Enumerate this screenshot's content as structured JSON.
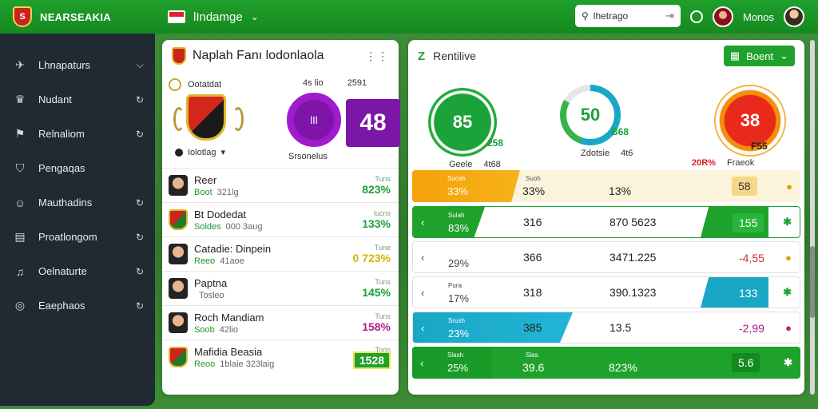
{
  "app": {
    "brand": "NEARSEAKIA",
    "page_title": "lIndamge"
  },
  "colors": {
    "primary": "#1fa02c",
    "sidebar": "#1f2a33",
    "purple": "#7a17a6",
    "orange": "#f5a10a",
    "teal": "#1aa7c6",
    "red": "#e8291c"
  },
  "search": {
    "value": "lhetrago"
  },
  "user": {
    "name": "Monos"
  },
  "sidebar": {
    "items": [
      {
        "label": "Lhnapaturs",
        "icon": "rocket-icon",
        "right": "chevron-down-icon"
      },
      {
        "label": "Nudant",
        "icon": "trophy-icon",
        "right": "refresh-icon"
      },
      {
        "label": "Relnaliom",
        "icon": "flag-icon",
        "right": "refresh-icon"
      },
      {
        "label": "Pengaqas",
        "icon": "shield-icon",
        "right": ""
      },
      {
        "label": "Mauthadins",
        "icon": "users-icon",
        "right": "refresh-icon"
      },
      {
        "label": "Proatlongom",
        "icon": "document-icon",
        "right": "refresh-icon"
      },
      {
        "label": "Oelnaturte",
        "icon": "bell-icon",
        "right": "refresh-icon"
      },
      {
        "label": "Eaephaos",
        "icon": "circle-icon",
        "right": "refresh-icon"
      }
    ]
  },
  "left": {
    "title": "Naplah Fanı lodonlaola",
    "club_label": "Ootatdat",
    "club_sub": "Iolotlag",
    "score_a": "4s lio",
    "score_b": "2591",
    "ring_text": "lIl",
    "box_value": "48",
    "caption": "Srsonelus",
    "players": [
      {
        "name": "Reer",
        "tag": "Boot",
        "meta": "321lg",
        "small": "Tuns",
        "pct": "823%",
        "style": "green",
        "avatar": "person"
      },
      {
        "name": "Bt Dodedat",
        "tag": "Soldes",
        "meta": "000 3aug",
        "small": "lucns",
        "pct": "133%",
        "style": "green",
        "avatar": "crest"
      },
      {
        "name": "Catadie: Dinpein",
        "tag": "Reeo",
        "meta": "41aoe",
        "small": "Tune",
        "pct": "0 723%",
        "style": "yellow",
        "avatar": "person"
      },
      {
        "name": "Paptna",
        "tag": "",
        "meta": "Tosleo",
        "small": "Tuns",
        "pct": "145%",
        "style": "green",
        "avatar": "person"
      },
      {
        "name": "Roch Mandiam",
        "tag": "Soob",
        "meta": "42lio",
        "small": "Tuns",
        "pct": "158%",
        "style": "purple",
        "avatar": "person"
      },
      {
        "name": "Mafidia Beasia",
        "tag": "Reoo",
        "meta": "1blaie 323laig",
        "small": "Toon",
        "pct": "1528",
        "style": "box",
        "avatar": "crest"
      }
    ]
  },
  "right": {
    "title": "Rentilive",
    "button": "Boent",
    "gauges": [
      {
        "value": "85",
        "side": "258",
        "cap_left": "Geele",
        "cap_right": "4t68",
        "color": "#1ba33a"
      },
      {
        "value": "50",
        "side": "B68",
        "cap_left": "Zdotsie",
        "cap_right": "4t6",
        "color": "#1aa7c6"
      },
      {
        "value": "38",
        "side": "F55",
        "cap_left": "20R%",
        "cap_right": "Fraeok",
        "color": "#e8291c"
      }
    ],
    "rows": [
      {
        "small": "Sucah",
        "left": "33%",
        "mid1": "33%",
        "mid1_small": "Suoh",
        "mid2": "13%",
        "end": "58",
        "end_icon": "●"
      },
      {
        "small": "Sulah",
        "left": "83%",
        "mid1": "316",
        "mid2": "870 5623",
        "end": "155",
        "end_icon": "✱"
      },
      {
        "small": "",
        "left": "29%",
        "mid1": "366",
        "mid2": "3471.225",
        "end": "-4,55",
        "end_icon": "●"
      },
      {
        "small": "Pura",
        "left": "17%",
        "mid1": "318",
        "mid2": "390.1323",
        "end": "133",
        "end_icon": "✱"
      },
      {
        "small": "Srush",
        "left": "23%",
        "mid1": "385",
        "mid2": "13.5",
        "end": "-2,99",
        "end_icon": "●"
      },
      {
        "small": "Slash",
        "left": "25%",
        "mid1": "39.6",
        "mid1_small": "Slas",
        "mid2": "823%",
        "end": "5.6",
        "end_icon": "✱"
      }
    ]
  }
}
